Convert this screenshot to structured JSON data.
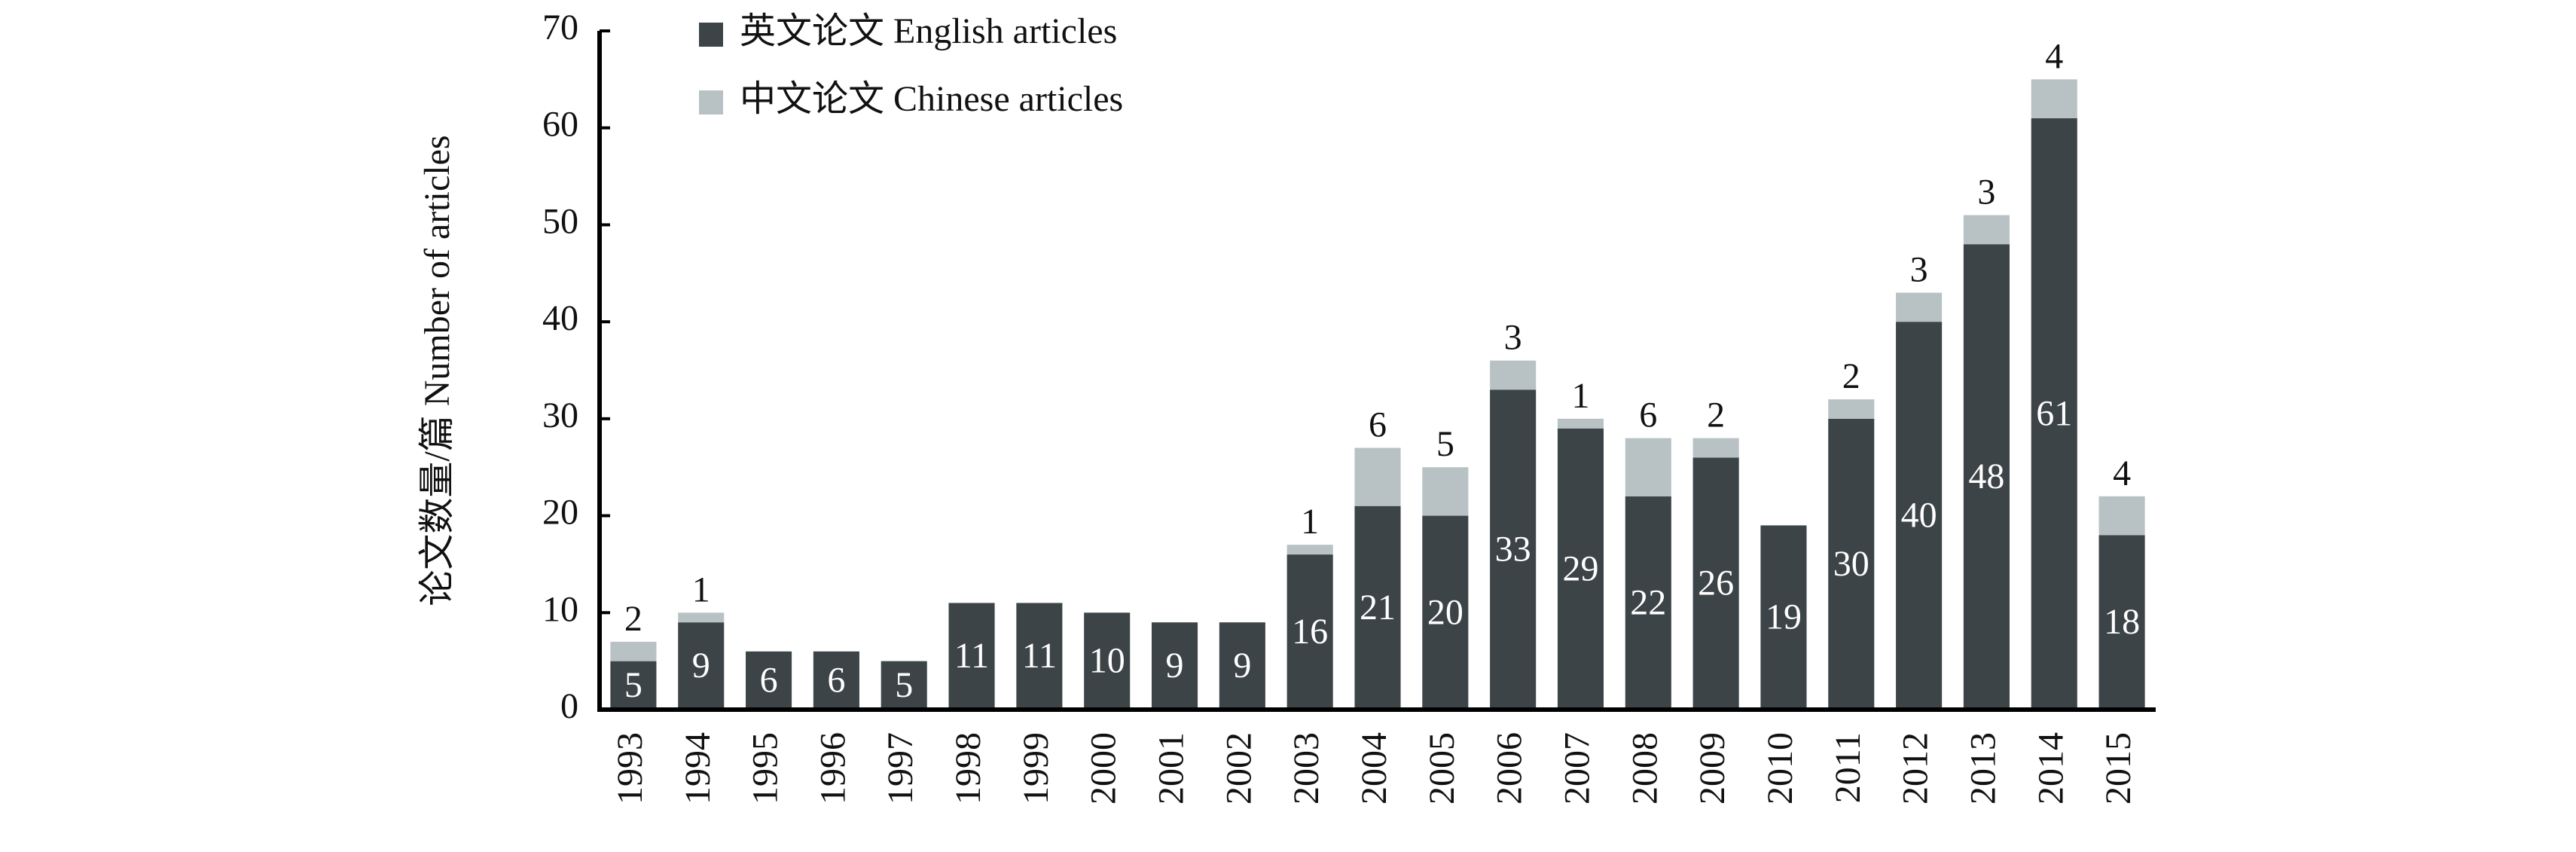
{
  "chart_data": {
    "type": "stacked-bar",
    "ylabel": "论文数量/篇 Number of articles",
    "categories": [
      "1993",
      "1994",
      "1995",
      "1996",
      "1997",
      "1998",
      "1999",
      "2000",
      "2001",
      "2002",
      "2003",
      "2004",
      "2005",
      "2006",
      "2007",
      "2008",
      "2009",
      "2010",
      "2011",
      "2012",
      "2013",
      "2014",
      "2015"
    ],
    "series": [
      {
        "name": "英文论文 English articles",
        "color": "#3d4447",
        "values": [
          5,
          9,
          6,
          6,
          5,
          11,
          11,
          10,
          9,
          9,
          16,
          21,
          20,
          33,
          29,
          22,
          26,
          19,
          30,
          40,
          48,
          61,
          18
        ]
      },
      {
        "name": "中文论文 Chinese articles",
        "color": "#b8c2c5",
        "values": [
          2,
          1,
          null,
          null,
          null,
          null,
          null,
          null,
          null,
          null,
          1,
          6,
          5,
          3,
          1,
          6,
          2,
          null,
          2,
          3,
          3,
          4,
          4
        ]
      }
    ],
    "ylim": [
      0,
      70
    ],
    "yticks": [
      0,
      10,
      20,
      30,
      40,
      50,
      60,
      70
    ],
    "grid": false
  }
}
